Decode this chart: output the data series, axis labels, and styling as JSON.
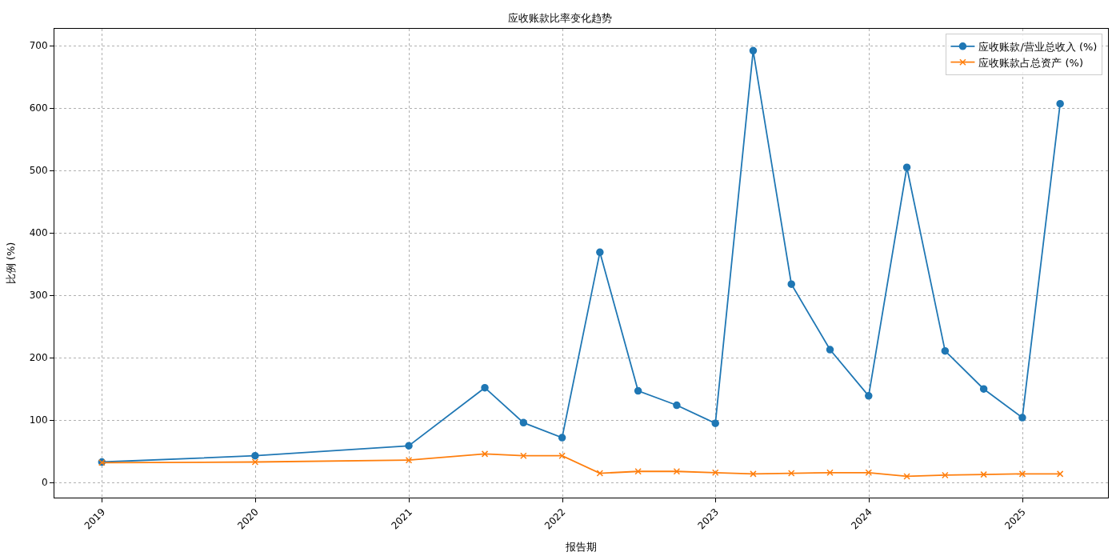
{
  "chart_data": {
    "type": "line",
    "title": "应收账款比率变化趋势",
    "xlabel": "报告期",
    "ylabel": "比例 (%)",
    "x": [
      "2018-12-31",
      "2019-12-31",
      "2020-12-31",
      "2021-06-30",
      "2021-09-30",
      "2021-12-31",
      "2022-03-31",
      "2022-06-30",
      "2022-09-30",
      "2022-12-31",
      "2023-03-31",
      "2023-06-30",
      "2023-09-30",
      "2023-12-31",
      "2024-03-31",
      "2024-06-30",
      "2024-09-30",
      "2024-12-31",
      "2025-03-31"
    ],
    "series": [
      {
        "name": "应收账款/营业总收入 (%)",
        "color": "#1f77b4",
        "marker": "circle",
        "values": [
          33,
          43,
          59,
          152,
          96,
          72,
          369,
          147,
          124,
          95,
          692,
          318,
          213,
          139,
          505,
          211,
          150,
          104,
          607
        ]
      },
      {
        "name": "应收账款占总资产 (%)",
        "color": "#ff7f0e",
        "marker": "cross",
        "values": [
          32,
          33,
          36,
          46,
          43,
          43,
          15,
          18,
          18,
          16,
          14,
          15,
          16,
          16,
          10,
          12,
          13,
          14,
          14
        ]
      }
    ],
    "xlim": [
      "2018-09-09",
      "2025-07-23"
    ],
    "xticks": [
      {
        "value": "2019-01-01",
        "label": "2019"
      },
      {
        "value": "2020-01-01",
        "label": "2020"
      },
      {
        "value": "2021-01-01",
        "label": "2021"
      },
      {
        "value": "2022-01-01",
        "label": "2022"
      },
      {
        "value": "2023-01-01",
        "label": "2023"
      },
      {
        "value": "2024-01-01",
        "label": "2024"
      },
      {
        "value": "2025-01-01",
        "label": "2025"
      }
    ],
    "ylim": [
      -24,
      727
    ],
    "yticks": [
      0,
      100,
      200,
      300,
      400,
      500,
      600,
      700
    ],
    "grid": true,
    "legend": "top right",
    "line_style": "solid"
  }
}
